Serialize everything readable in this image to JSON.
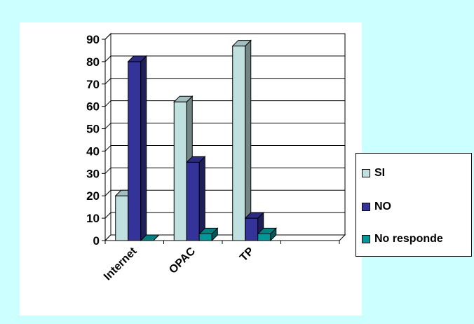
{
  "chart_data": {
    "type": "bar",
    "categories": [
      "Internet",
      "OPAC",
      "TP"
    ],
    "series": [
      {
        "name": "SI",
        "values": [
          20,
          62,
          87
        ],
        "color": "#c0e0e0"
      },
      {
        "name": "NO",
        "values": [
          80,
          35,
          10
        ],
        "color": "#333399"
      },
      {
        "name": "No responde",
        "values": [
          0,
          3,
          3
        ],
        "color": "#009999"
      }
    ],
    "ylim": [
      0,
      90
    ],
    "yticks": [
      0,
      10,
      20,
      30,
      40,
      50,
      60,
      70,
      80,
      90
    ],
    "grid": true,
    "three_d": true,
    "legend_position": "right",
    "title": "",
    "xlabel": "",
    "ylabel": ""
  }
}
